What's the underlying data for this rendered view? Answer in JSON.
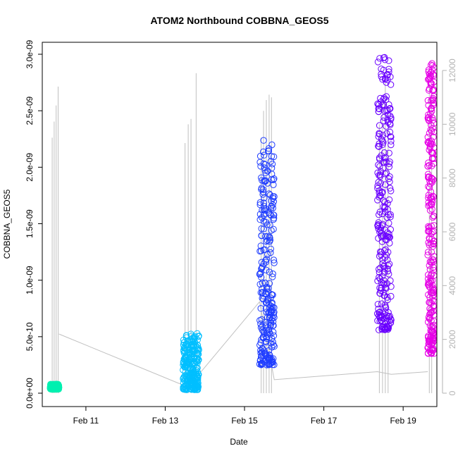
{
  "chart_data": {
    "type": "scatter",
    "title": "ATOM2 Northbound COBBNA_GEOS5",
    "xlabel": "Date",
    "ylabel": "COBBNA_GEOS5",
    "x_ticks": [
      "Feb 11",
      "Feb 13",
      "Feb 15",
      "Feb 17",
      "Feb 19"
    ],
    "x_tick_days": [
      11,
      13,
      15,
      17,
      19
    ],
    "xlim": [
      9.9,
      19.85
    ],
    "ylim": [
      0,
      3e-09
    ],
    "y_ticks": [
      "0.0e+00",
      "5.0e-10",
      "1.0e-09",
      "1.5e-09",
      "2.0e-09",
      "2.5e-09",
      "3.0e-09"
    ],
    "y_tick_values": [
      0,
      5e-10,
      1e-09,
      1.5e-09,
      2e-09,
      2.5e-09,
      3e-09
    ],
    "y2lim": [
      0,
      12000
    ],
    "y2_ticks": [
      "0",
      "2000",
      "4000",
      "6000",
      "8000",
      "10000",
      "12000"
    ],
    "y2_tick_values": [
      0,
      2000,
      4000,
      6000,
      8000,
      10000,
      12000
    ],
    "altitude_line_color": "#c0c0c0",
    "flights": [
      {
        "color": "#00f0b0",
        "x_start": 10.1,
        "x_end": 10.32,
        "y_min": 3.5e-11,
        "y_max": 8e-11
      },
      {
        "color": "#00bfff",
        "x_start": 13.45,
        "x_end": 13.85,
        "y_min": 3e-11,
        "y_max": 5.3e-10
      },
      {
        "color": "#1f3dff",
        "x_start": 15.38,
        "x_end": 15.75,
        "y_min": 2.5e-10,
        "y_max": 2.25e-09
      },
      {
        "color": "#6a00ff",
        "x_start": 18.35,
        "x_end": 18.7,
        "y_min": 5.6e-10,
        "y_max": 2.98e-09
      },
      {
        "color": "#e600e6",
        "x_start": 19.62,
        "x_end": 19.78,
        "y_min": 3.5e-10,
        "y_max": 2.92e-09
      }
    ],
    "altitude_spikes": [
      {
        "x": 10.15,
        "alt": 9500
      },
      {
        "x": 10.2,
        "alt": 10100
      },
      {
        "x": 10.25,
        "alt": 10700
      },
      {
        "x": 10.3,
        "alt": 11400
      },
      {
        "x": 13.5,
        "alt": 9300
      },
      {
        "x": 13.58,
        "alt": 10000
      },
      {
        "x": 13.65,
        "alt": 10200
      },
      {
        "x": 13.78,
        "alt": 11900
      },
      {
        "x": 15.42,
        "alt": 9500
      },
      {
        "x": 15.48,
        "alt": 10500
      },
      {
        "x": 15.55,
        "alt": 10900
      },
      {
        "x": 15.62,
        "alt": 11100
      },
      {
        "x": 15.68,
        "alt": 11000
      },
      {
        "x": 18.4,
        "alt": 10000
      },
      {
        "x": 18.48,
        "alt": 10900
      },
      {
        "x": 18.55,
        "alt": 11800
      },
      {
        "x": 18.62,
        "alt": 10600
      },
      {
        "x": 19.66,
        "alt": 11500
      },
      {
        "x": 19.72,
        "alt": 11000
      }
    ],
    "altitude_path": [
      {
        "x": 10.32,
        "alt": 2200
      },
      {
        "x": 13.45,
        "alt": 300
      },
      {
        "x": 13.85,
        "alt": 700
      },
      {
        "x": 15.38,
        "alt": 3400
      },
      {
        "x": 15.75,
        "alt": 500
      },
      {
        "x": 18.35,
        "alt": 800
      },
      {
        "x": 18.7,
        "alt": 700
      },
      {
        "x": 19.62,
        "alt": 800
      }
    ]
  }
}
